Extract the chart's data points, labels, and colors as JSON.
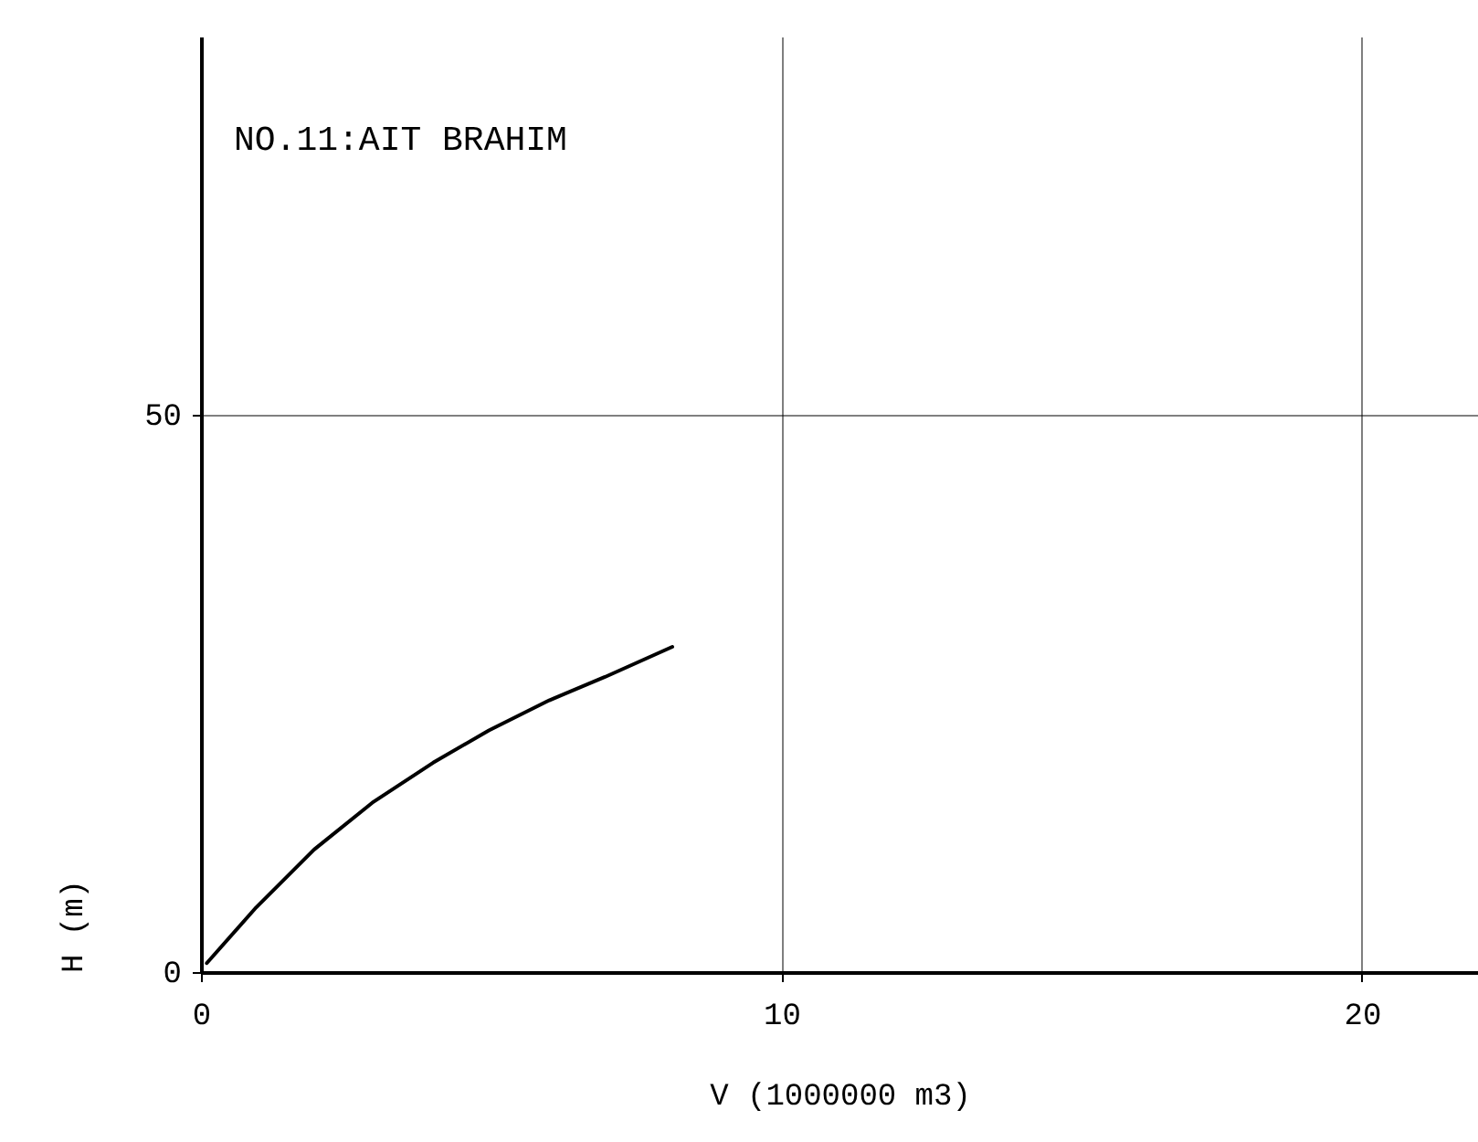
{
  "chart_data": {
    "type": "line",
    "title": "NO.11:AIT BRAHIM",
    "xlabel": "V (1000000 m3)",
    "ylabel": "H (m)",
    "x": [
      0.1,
      0.95,
      1.95,
      2.95,
      4.0,
      4.96,
      6.0,
      6.96,
      8.12
    ],
    "series": [
      {
        "color": "#000000",
        "values": [
          0.8,
          5.8,
          11.0,
          15.2,
          18.8,
          21.7,
          24.4,
          26.5,
          29.2
        ]
      }
    ],
    "xlim": [
      0,
      22
    ],
    "ylim": [
      0,
      84
    ],
    "xticks": [
      0,
      10,
      20
    ],
    "yticks": [
      0,
      50
    ],
    "grid": true,
    "marker": "none",
    "line_style": "solid"
  }
}
